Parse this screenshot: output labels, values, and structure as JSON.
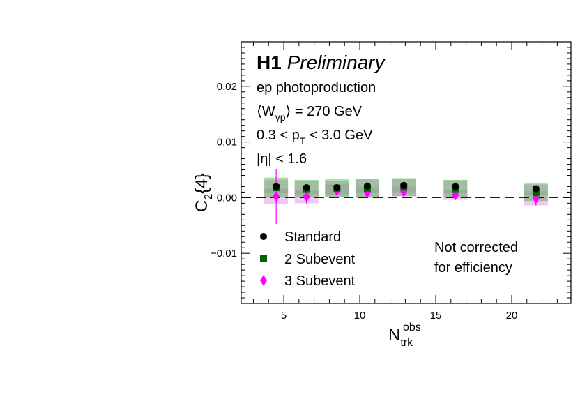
{
  "chart_data": {
    "type": "scatter",
    "experiment": "H1",
    "status": "Preliminary",
    "annotations": {
      "process": "ep photoproduction",
      "w_prefix": "⟨W",
      "w_sub": "γp",
      "w_suffix": "⟩ = 270 GeV",
      "pt_prefix": "0.3 < p",
      "pt_sub": "T",
      "pt_suffix": " < 3.0 GeV",
      "eta_cut": "|η| < 1.6",
      "note_line1": "Not corrected",
      "note_line2": "for efficiency"
    },
    "xlabel": {
      "main": "N",
      "sub": "trk",
      "sup": "obs"
    },
    "ylabel": {
      "main": "C",
      "sub": "2",
      "suffix": "{4}"
    },
    "xlim": [
      2.2,
      23.9
    ],
    "ylim": [
      -0.019,
      0.028
    ],
    "x_ticks": [
      5,
      10,
      15,
      20
    ],
    "y_ticks": [
      -0.01,
      0.0,
      0.01,
      0.02
    ],
    "x_tick_labels": [
      "5",
      "10",
      "15",
      "20"
    ],
    "y_tick_labels": [
      "−0.01",
      "0.00",
      "0.01",
      "0.02"
    ],
    "zero_line": "dashed",
    "legend_position": "bottom-left",
    "series": [
      {
        "name": "Standard",
        "color": "#000000",
        "marker": "circle",
        "x": [
          4.5,
          6.5,
          8.5,
          10.5,
          12.9,
          16.3,
          21.6
        ],
        "y": [
          0.002,
          0.0018,
          0.0018,
          0.0021,
          0.0022,
          0.002,
          0.0016
        ],
        "stat_err": [
          0.0003,
          0.0003,
          0.0003,
          0.0003,
          0.0003,
          0.0003,
          0.0003
        ],
        "sys_err": [
          0.0012,
          0.0012,
          0.0012,
          0.0012,
          0.0012,
          0.0011,
          0.0011
        ]
      },
      {
        "name": "2 Subevent",
        "color": "#006400",
        "marker": "square",
        "x": [
          4.5,
          6.5,
          8.5,
          10.5,
          12.9,
          16.3,
          21.6
        ],
        "y": [
          0.0018,
          0.0016,
          0.0017,
          0.0017,
          0.0019,
          0.0016,
          0.0009
        ],
        "stat_err": [
          0.0005,
          0.0005,
          0.0005,
          0.0005,
          0.0005,
          0.0005,
          0.0005
        ],
        "sys_err": [
          0.0018,
          0.0016,
          0.0016,
          0.0016,
          0.0016,
          0.0016,
          0.0015
        ]
      },
      {
        "name": "3 Subevent",
        "color": "#ff00ff",
        "marker": "diamond",
        "x": [
          4.5,
          6.5,
          8.5,
          10.5,
          12.9,
          16.3,
          21.6
        ],
        "y": [
          0.0002,
          0.0002,
          0.0013,
          0.0009,
          0.0011,
          0.0005,
          -0.0001
        ],
        "stat_err": [
          0.0049,
          0.0013,
          0.0013,
          0.0007,
          0.0007,
          0.0007,
          0.0013
        ],
        "sys_err": [
          0.0014,
          0.0012,
          0.0011,
          0.001,
          0.0009,
          0.0009,
          0.0013
        ]
      }
    ]
  }
}
